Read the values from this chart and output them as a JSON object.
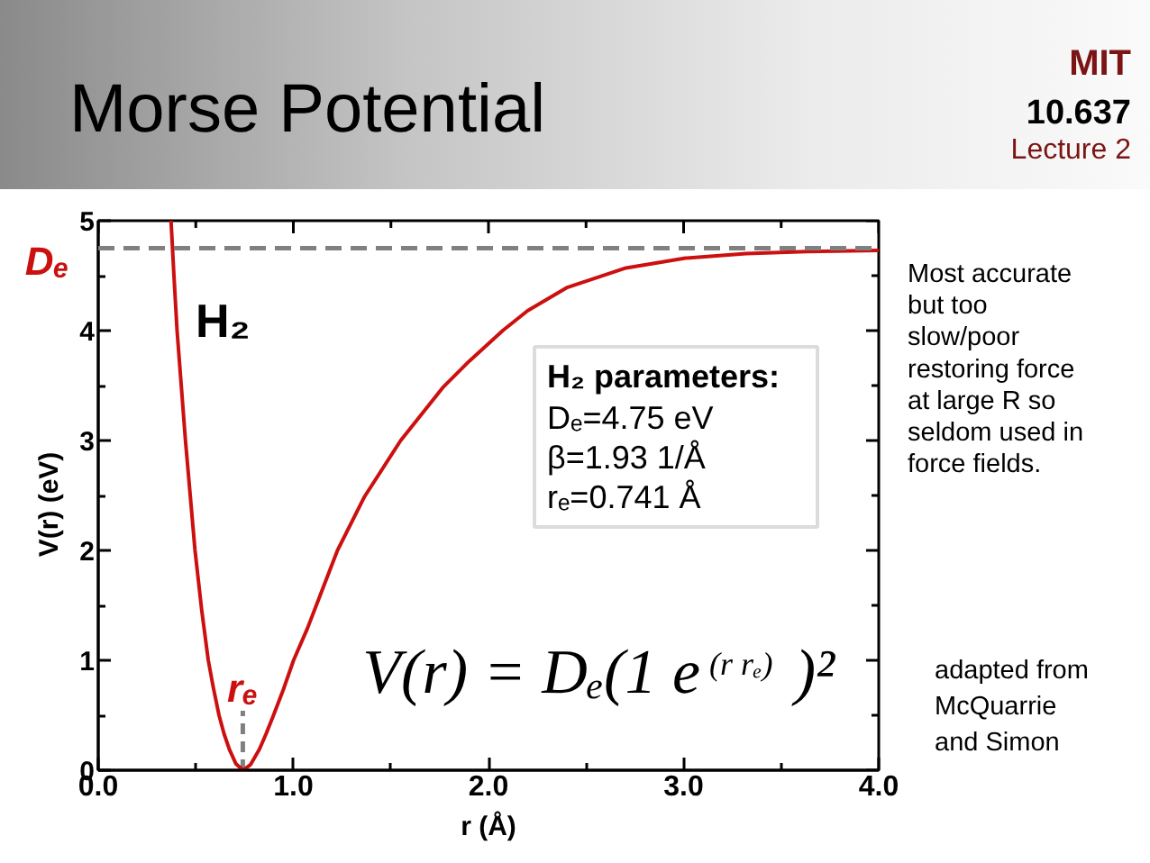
{
  "chart_data": {
    "type": "line",
    "title": "Morse Potential",
    "xlabel": "r (Å)",
    "ylabel": "V(r) (eV)",
    "x": [
      0.373,
      0.388,
      0.404,
      0.447,
      0.496,
      0.53,
      0.564,
      0.59,
      0.619,
      0.645,
      0.672,
      0.705,
      0.742,
      0.78,
      0.826,
      0.86,
      0.896,
      0.95,
      1.001,
      1.072,
      1.15,
      1.226,
      1.365,
      1.55,
      1.765,
      1.9,
      2.073,
      2.2,
      2.4,
      2.705,
      3.01,
      3.32,
      3.63,
      4.0
    ],
    "series": [
      {
        "color": "#cc1010",
        "values": [
          5.0,
          4.5,
          4.0,
          3.0,
          2.0,
          1.46,
          1.0,
          0.75,
          0.5,
          0.33,
          0.19,
          0.06,
          0.0,
          0.05,
          0.19,
          0.33,
          0.49,
          0.74,
          1.0,
          1.29,
          1.65,
          2.0,
          2.49,
          3.0,
          3.48,
          3.72,
          4.0,
          4.18,
          4.39,
          4.57,
          4.66,
          4.7,
          4.72,
          4.73
        ]
      }
    ],
    "xlim": [
      0,
      4
    ],
    "ylim": [
      0,
      5
    ],
    "xticks": [
      {
        "value": 0,
        "label": "0.0"
      },
      {
        "value": 1,
        "label": "1.0"
      },
      {
        "value": 2,
        "label": "2.0"
      },
      {
        "value": 3,
        "label": "3.0"
      },
      {
        "value": 4,
        "label": "4.0"
      }
    ],
    "yticks": [
      0,
      1,
      2,
      3,
      4,
      5
    ],
    "ref_lines": [
      {
        "axis": "y",
        "value": 4.75,
        "label": "Dₑ",
        "color": "#808080",
        "line_style": "dashed"
      },
      {
        "axis": "x",
        "value": 0.741,
        "label": "rₑ",
        "color": "#808080",
        "line_style": "dashed"
      }
    ],
    "annotations": [
      "H₂",
      "H₂ parameters:",
      "Dₑ=4.75 eV",
      "β=1.93 1/Å",
      "rₑ=0.741 Å",
      "V(r) = Dₑ(1 e$^{(r rₑ)}$)²",
      "Most accurate\nbut too\nslow/poor\nrestoring force\nat large R so\nseldom used in\nforce fields.",
      "adapted from\nMcQuarrie\nand Simon",
      "MIT",
      "10.637",
      "Lecture 2"
    ]
  }
}
